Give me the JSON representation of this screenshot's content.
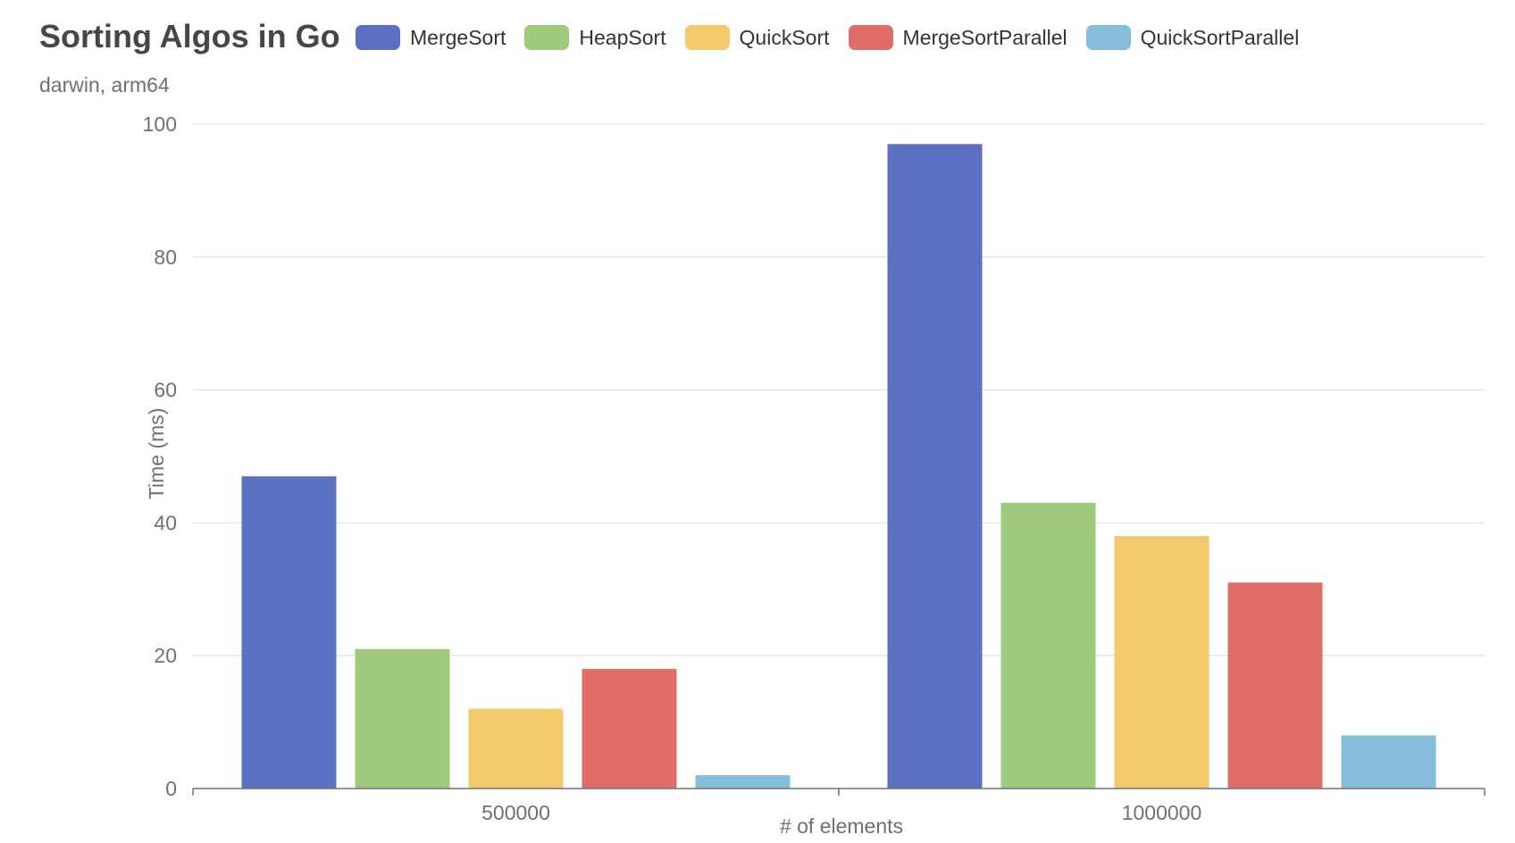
{
  "chart_data": {
    "type": "bar",
    "title": "Sorting Algos in Go",
    "subtitle": "darwin, arm64",
    "xlabel": "# of elements",
    "ylabel": "Time (ms)",
    "categories": [
      "500000",
      "1000000"
    ],
    "ylim": [
      0,
      100
    ],
    "yticks": [
      0,
      20,
      40,
      60,
      80,
      100
    ],
    "grid": true,
    "legend_position": "top",
    "series": [
      {
        "name": "MergeSort",
        "color": "#5b70c1",
        "values": [
          47,
          97
        ]
      },
      {
        "name": "HeapSort",
        "color": "#9fca7c",
        "values": [
          21,
          43
        ]
      },
      {
        "name": "QuickSort",
        "color": "#f2c96b",
        "values": [
          12,
          38
        ]
      },
      {
        "name": "MergeSortParallel",
        "color": "#e06e68",
        "values": [
          18,
          31
        ]
      },
      {
        "name": "QuickSortParallel",
        "color": "#85bedb",
        "values": [
          2,
          8
        ]
      }
    ]
  }
}
